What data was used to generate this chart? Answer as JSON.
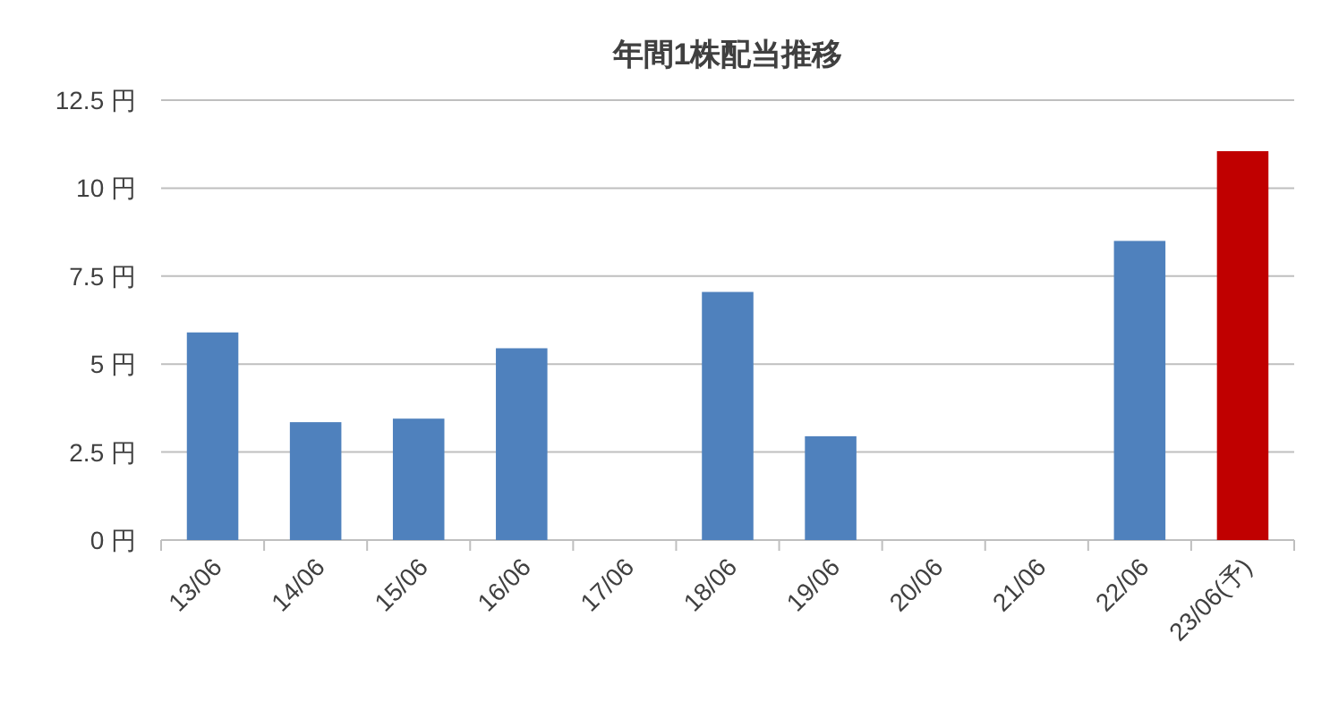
{
  "chart_data": {
    "type": "bar",
    "title": "年間1株配当推移",
    "categories": [
      "13/06",
      "14/06",
      "15/06",
      "16/06",
      "17/06",
      "18/06",
      "19/06",
      "20/06",
      "21/06",
      "22/06",
      "23/06(予)"
    ],
    "values": [
      5.9,
      3.35,
      3.45,
      5.45,
      0,
      7.05,
      2.95,
      0,
      0,
      8.5,
      11.05
    ],
    "colors": [
      "#4f81bd",
      "#4f81bd",
      "#4f81bd",
      "#4f81bd",
      "#4f81bd",
      "#4f81bd",
      "#4f81bd",
      "#4f81bd",
      "#4f81bd",
      "#4f81bd",
      "#c00000"
    ],
    "ylim": [
      0,
      12.5
    ],
    "yticks": [
      {
        "value": 0,
        "label": "0 円"
      },
      {
        "value": 2.5,
        "label": "2.5 円"
      },
      {
        "value": 5,
        "label": "5 円"
      },
      {
        "value": 7.5,
        "label": "7.5 円"
      },
      {
        "value": 10,
        "label": "10 円"
      },
      {
        "value": 12.5,
        "label": "12.5 円"
      }
    ],
    "grid": "y"
  }
}
